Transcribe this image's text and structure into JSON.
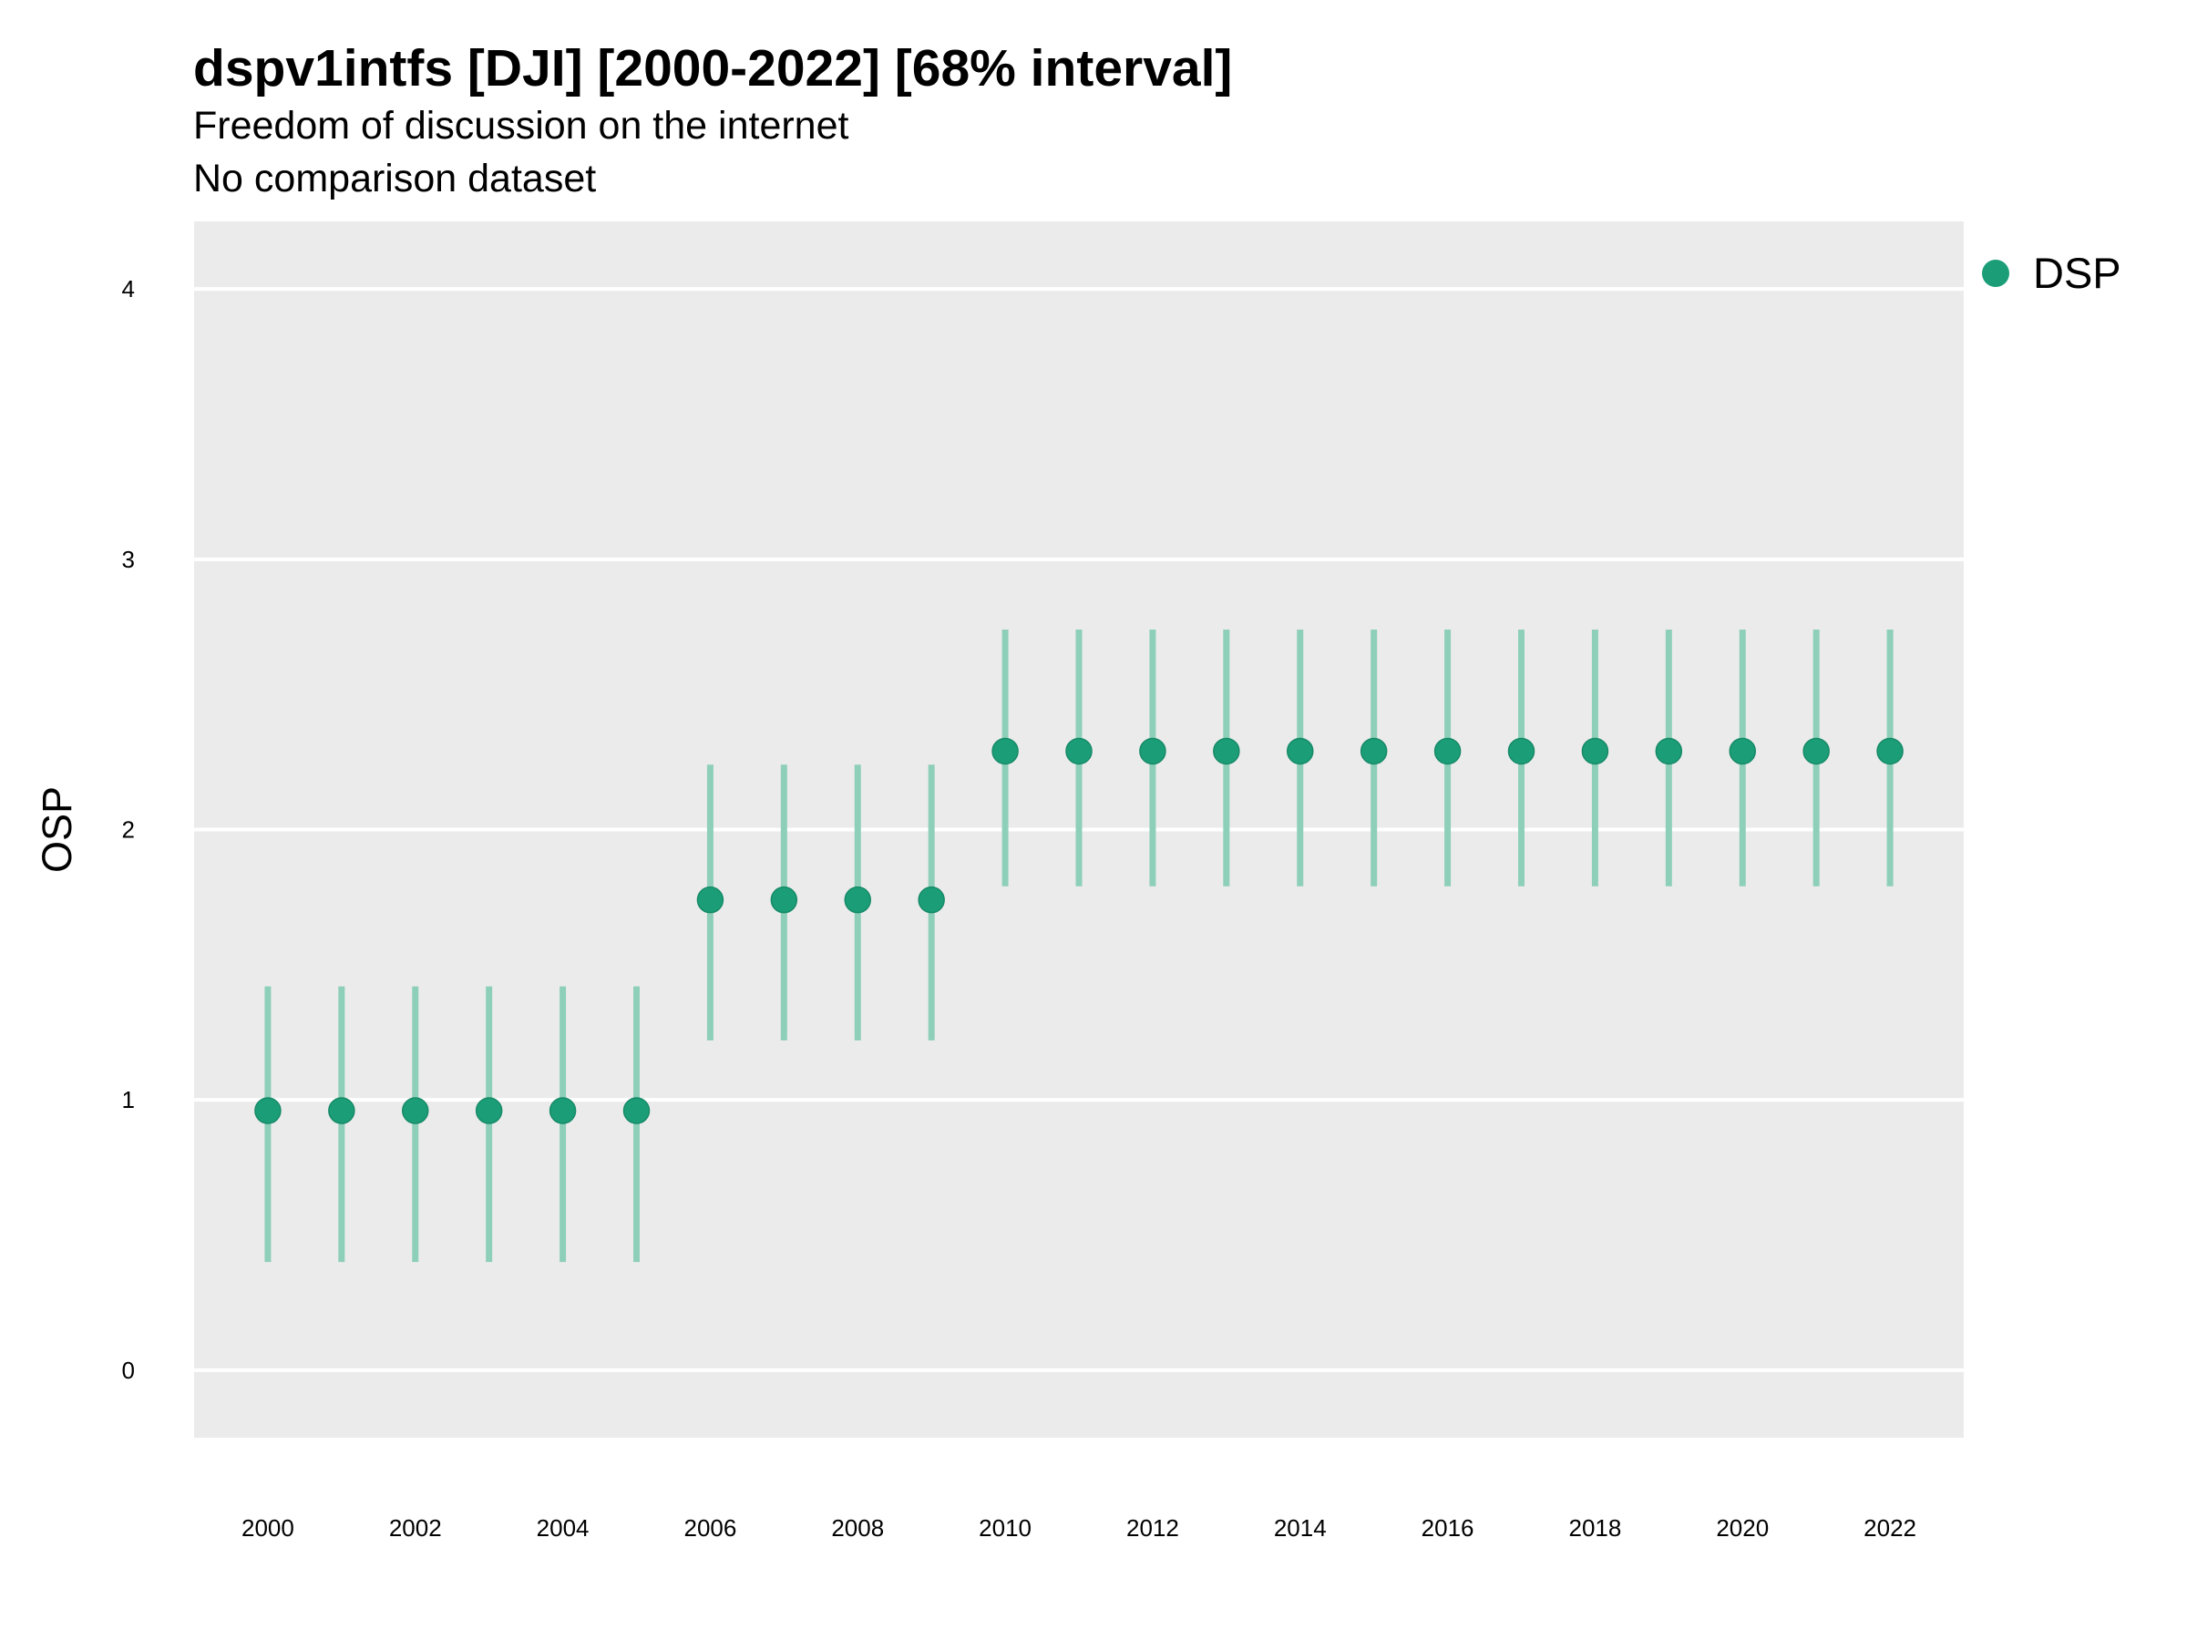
{
  "title": "dspv1intfs [DJI] [2000-2022] [68% interval]",
  "subtitle": "Freedom of discussion on the internet",
  "subtitle2": "No comparison dataset",
  "legend": {
    "label": "DSP"
  },
  "colors": {
    "panel": "#ebebeb",
    "grid": "#ffffff",
    "point": "#1b9e77",
    "interval": "#8ecfb9"
  },
  "chart_data": {
    "type": "scatter",
    "title": "dspv1intfs [DJI] [2000-2022] [68% interval]",
    "subtitle": "Freedom of discussion on the internet",
    "xlabel": "",
    "ylabel": "OSP",
    "ylim": [
      -0.25,
      4.25
    ],
    "xlim": [
      1999,
      2023
    ],
    "yticks": [
      0,
      1,
      2,
      3,
      4
    ],
    "xticks": [
      2000,
      2002,
      2004,
      2006,
      2008,
      2010,
      2012,
      2014,
      2016,
      2018,
      2020,
      2022
    ],
    "grid": true,
    "legend_position": "right",
    "series": [
      {
        "name": "DSP",
        "x": [
          2000,
          2001,
          2002,
          2003,
          2004,
          2005,
          2006,
          2007,
          2008,
          2009,
          2010,
          2011,
          2012,
          2013,
          2014,
          2015,
          2016,
          2017,
          2018,
          2019,
          2020,
          2021,
          2022
        ],
        "y": [
          0.96,
          0.96,
          0.96,
          0.96,
          0.96,
          0.96,
          1.74,
          1.74,
          1.74,
          1.74,
          2.29,
          2.29,
          2.29,
          2.29,
          2.29,
          2.29,
          2.29,
          2.29,
          2.29,
          2.29,
          2.29,
          2.29,
          2.29
        ],
        "lower": [
          0.4,
          0.4,
          0.4,
          0.4,
          0.4,
          0.4,
          1.22,
          1.22,
          1.22,
          1.22,
          1.79,
          1.79,
          1.79,
          1.79,
          1.79,
          1.79,
          1.79,
          1.79,
          1.79,
          1.79,
          1.79,
          1.79,
          1.79
        ],
        "upper": [
          1.42,
          1.42,
          1.42,
          1.42,
          1.42,
          1.42,
          2.24,
          2.24,
          2.24,
          2.24,
          2.74,
          2.74,
          2.74,
          2.74,
          2.74,
          2.74,
          2.74,
          2.74,
          2.74,
          2.74,
          2.74,
          2.74,
          2.74
        ]
      }
    ]
  }
}
